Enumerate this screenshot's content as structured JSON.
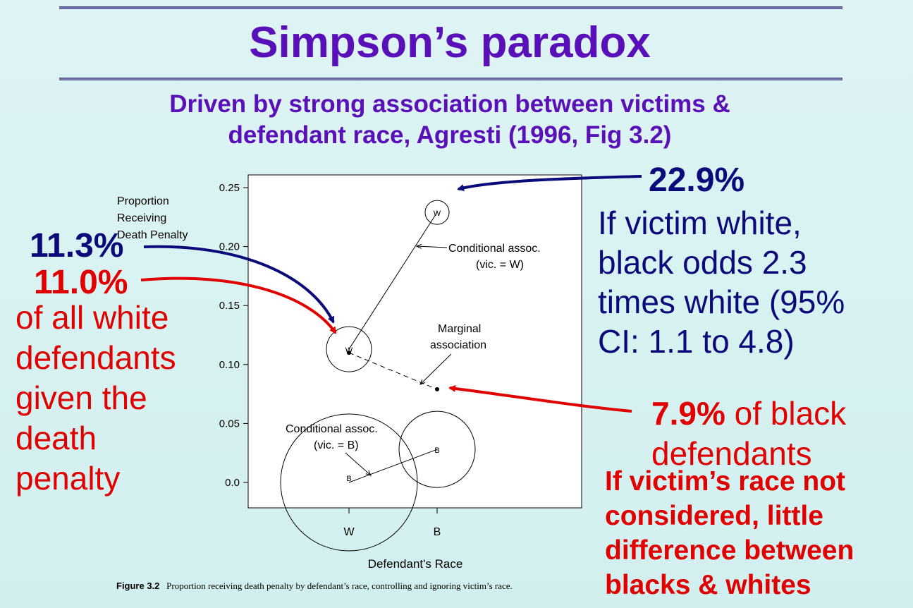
{
  "slide": {
    "title": "Simpson’s paradox",
    "subtitle_line1": "Driven by strong association between victims &",
    "subtitle_line2": "defendant race, Agresti (1996, Fig 3.2)"
  },
  "annotations": {
    "white_vic_w": "22.9%",
    "right_blue_lines": [
      "If victim white,",
      "black odds 2.3",
      "times white (95%",
      "CI: 1.1 to 4.8)"
    ],
    "white_cond": "11.3%",
    "white_marg": "11.0%",
    "left_red_lines": [
      "of all white",
      "defendants",
      "given the",
      "death",
      "penalty"
    ],
    "black_marg": "7.9%",
    "black_marg_text": " of black",
    "black_marg_text2": "defendants",
    "bottom_red_lines": [
      "If victim’s race not",
      "considered, little",
      "difference between",
      "blacks & whites"
    ]
  },
  "figure": {
    "caption_label": "Figure 3.2",
    "caption_text": "Proportion receiving death penalty by defendant’s race, controlling and ignoring victim’s race."
  },
  "chart_data": {
    "type": "scatter",
    "xlabel": "Defendant's Race",
    "ylabel": "Proportion Receiving Death Penalty",
    "ylabel_lines": [
      "Proportion",
      "Receiving",
      "Death Penalty"
    ],
    "categories": [
      "W",
      "B"
    ],
    "ylim": [
      0,
      0.25
    ],
    "yticks": [
      0.0,
      0.05,
      0.1,
      0.15,
      0.2,
      0.25
    ],
    "ytick_labels": [
      "0.0",
      "0.05",
      "0.10",
      "0.15",
      "0.20",
      "0.25"
    ],
    "grid": false,
    "circles": [
      {
        "label": "W",
        "defendant": "W",
        "victim": "W",
        "value": 0.113
      },
      {
        "label": "B",
        "defendant": "W",
        "victim": "B",
        "value": 0.0
      },
      {
        "label": "W",
        "defendant": "B",
        "victim": "W",
        "value": 0.229
      },
      {
        "label": "B",
        "defendant": "B",
        "victim": "B",
        "value": 0.028
      }
    ],
    "marginal": [
      {
        "defendant": "W",
        "value": 0.11
      },
      {
        "defendant": "B",
        "value": 0.079
      }
    ],
    "annotations": [
      {
        "lines": [
          "Conditional assoc.",
          "(vic. = W)"
        ]
      },
      {
        "lines": [
          "Marginal",
          "association"
        ]
      },
      {
        "lines": [
          "Conditional assoc.",
          "(vic. = B)"
        ]
      }
    ]
  }
}
